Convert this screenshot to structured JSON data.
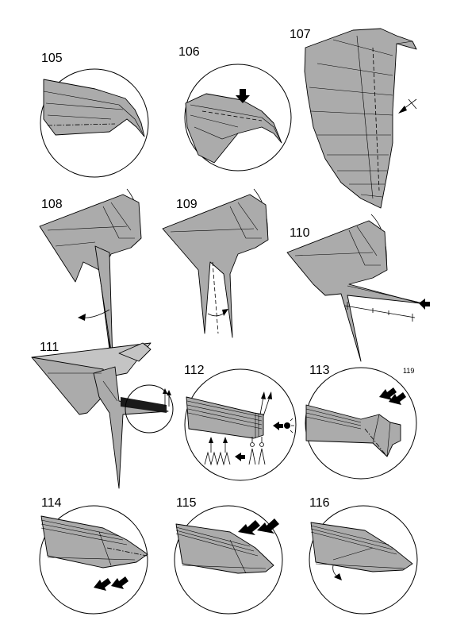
{
  "page_number": "119",
  "steps": [
    "105",
    "106",
    "107",
    "108",
    "109",
    "110",
    "111",
    "112",
    "113",
    "114",
    "115",
    "116"
  ],
  "icons": {
    "push_arrow": "push-arrow-icon",
    "fold_arrow": "fold-arrow-icon",
    "repeat_marks": "zigzag-pleat-icon",
    "eye_view": "view-from-icon"
  }
}
